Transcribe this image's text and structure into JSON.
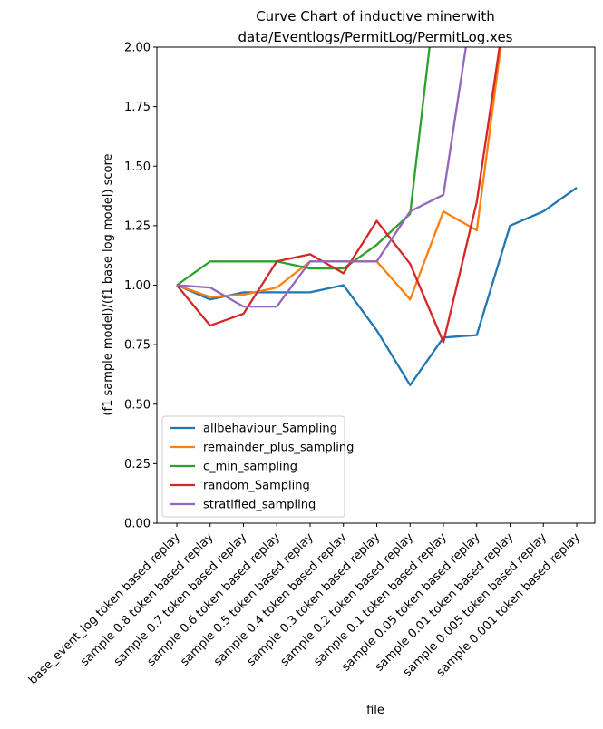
{
  "chart_data": {
    "type": "line",
    "title_lines": [
      "Curve Chart of inductive minerwith",
      "data/Eventlogs/PermitLog/PermitLog.xes"
    ],
    "xlabel": "file",
    "ylabel": "(f1 sample model)/(f1 base log model) score",
    "ylim": [
      0,
      2
    ],
    "yticks": [
      "0.00",
      "0.25",
      "0.50",
      "0.75",
      "1.00",
      "1.25",
      "1.50",
      "1.75",
      "2.00"
    ],
    "categories": [
      "base_event_log token based replay",
      "sample 0.8 token based replay",
      "sample 0.7 token based replay",
      "sample 0.6 token based replay",
      "sample 0.5 token based replay",
      "sample 0.4 token based replay",
      "sample 0.3 token based replay",
      "sample 0.2 token based replay",
      "sample 0.1 token based replay",
      "sample 0.05 token based replay",
      "sample 0.01 token based replay",
      "sample 0.005 token based replay",
      "sample 0.001 token based replay"
    ],
    "grid": false,
    "legend_position": "lower-left",
    "series": [
      {
        "name": "allbehaviour_Sampling",
        "color": "#1f77b4",
        "values": [
          1.0,
          0.94,
          0.97,
          0.97,
          0.97,
          1.0,
          0.81,
          0.58,
          0.78,
          0.79,
          1.25,
          1.31,
          1.41
        ]
      },
      {
        "name": "remainder_plus_sampling",
        "color": "#ff7f0e",
        "values": [
          1.0,
          0.95,
          0.96,
          0.99,
          1.1,
          1.1,
          1.1,
          0.94,
          1.31,
          1.23,
          2.3,
          null,
          null
        ]
      },
      {
        "name": "c_min_sampling",
        "color": "#2ca02c",
        "values": [
          1.0,
          1.1,
          1.1,
          1.1,
          1.07,
          1.07,
          1.17,
          1.3,
          2.5,
          null,
          null,
          null,
          null
        ]
      },
      {
        "name": "random_Sampling",
        "color": "#d62728",
        "values": [
          1.0,
          0.83,
          0.88,
          1.1,
          1.13,
          1.05,
          1.27,
          1.09,
          0.76,
          1.35,
          2.3,
          null,
          null
        ]
      },
      {
        "name": "stratified_sampling",
        "color": "#9467bd",
        "values": [
          1.0,
          0.99,
          0.91,
          0.91,
          1.1,
          1.1,
          1.1,
          1.31,
          1.38,
          2.3,
          null,
          null,
          null
        ]
      }
    ]
  }
}
